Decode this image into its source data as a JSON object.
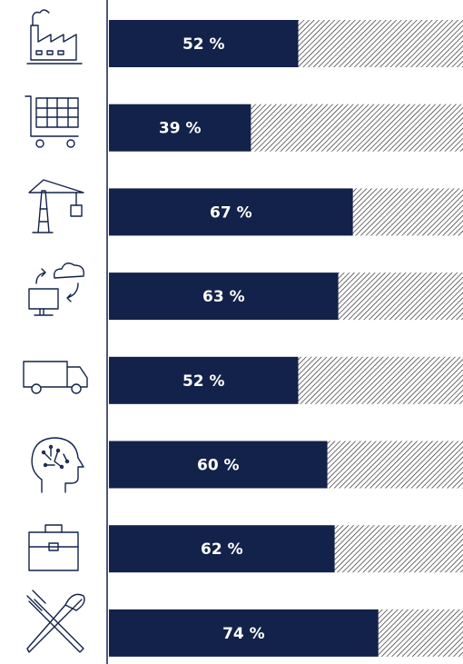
{
  "chart_data": {
    "type": "bar",
    "categories": [
      null,
      null,
      null,
      null,
      null,
      null,
      null,
      null
    ],
    "values": [
      52,
      39,
      67,
      63,
      52,
      60,
      62,
      74
    ],
    "value_labels": [
      "52 %",
      "39 %",
      "67 %",
      "63 %",
      "52 %",
      "60 %",
      "62 %",
      "74 %"
    ],
    "color": "#13224a",
    "xlim": [
      0,
      100
    ]
  }
}
